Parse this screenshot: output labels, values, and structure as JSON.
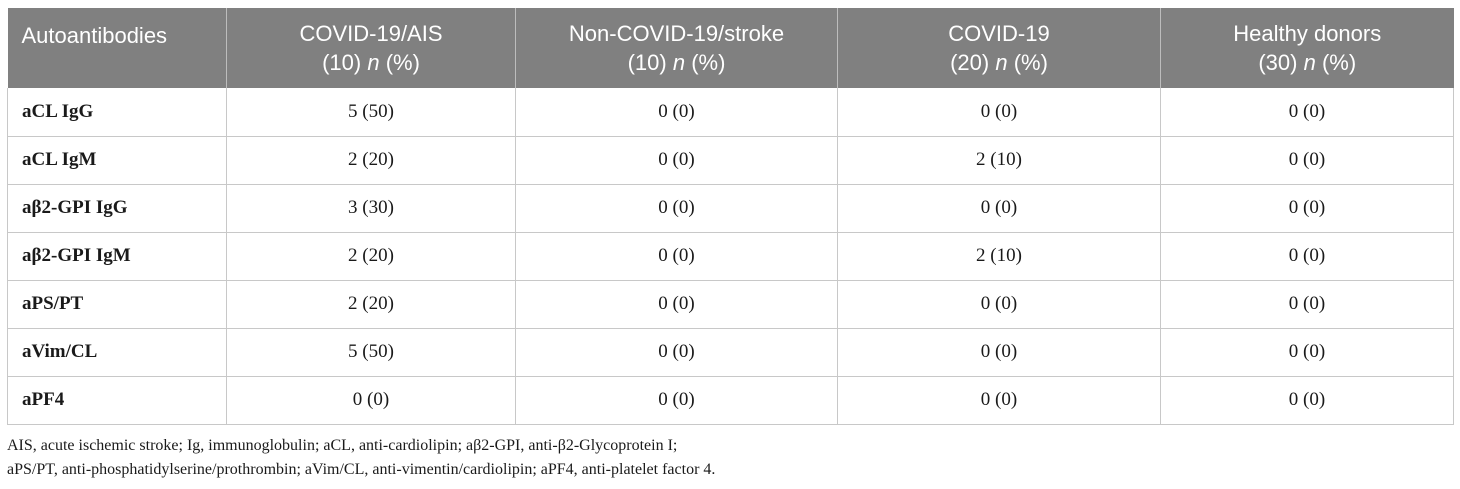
{
  "table": {
    "headers": [
      {
        "line1": "Autoantibodies",
        "line2": ""
      },
      {
        "line1": "COVID-19/AIS",
        "line2": "(10)",
        "italic": "n",
        "tail": "(%)"
      },
      {
        "line1": "Non-COVID-19/stroke",
        "line2": "(10)",
        "italic": "n",
        "tail": "(%)"
      },
      {
        "line1": "COVID-19",
        "line2": "(20)",
        "italic": "n",
        "tail": "(%)"
      },
      {
        "line1": "Healthy donors",
        "line2": "(30)",
        "italic": "n",
        "tail": "(%)"
      }
    ],
    "rows": [
      {
        "name": "aCL IgG",
        "v": [
          "5 (50)",
          "0 (0)",
          "0 (0)",
          "0 (0)"
        ]
      },
      {
        "name": "aCL IgM",
        "v": [
          "2 (20)",
          "0 (0)",
          "2 (10)",
          "0 (0)"
        ]
      },
      {
        "name": "aβ2-GPI IgG",
        "v": [
          "3 (30)",
          "0 (0)",
          "0 (0)",
          "0 (0)"
        ]
      },
      {
        "name": "aβ2-GPI IgM",
        "v": [
          "2 (20)",
          "0 (0)",
          "2 (10)",
          "0 (0)"
        ]
      },
      {
        "name": "aPS/PT",
        "v": [
          "2 (20)",
          "0 (0)",
          "0 (0)",
          "0 (0)"
        ]
      },
      {
        "name": "aVim/CL",
        "v": [
          "5 (50)",
          "0 (0)",
          "0 (0)",
          "0 (0)"
        ]
      },
      {
        "name": "aPF4",
        "v": [
          "0 (0)",
          "0 (0)",
          "0 (0)",
          "0 (0)"
        ]
      }
    ]
  },
  "footnote": {
    "line1": "AIS, acute ischemic stroke; Ig, immunoglobulin; aCL, anti-cardiolipin; aβ2-GPI, anti-β2-Glycoprotein I;",
    "line2": "aPS/PT, anti-phosphatidylserine/prothrombin; aVim/CL, anti-vimentin/cardiolipin; aPF4, anti-platelet factor 4."
  }
}
